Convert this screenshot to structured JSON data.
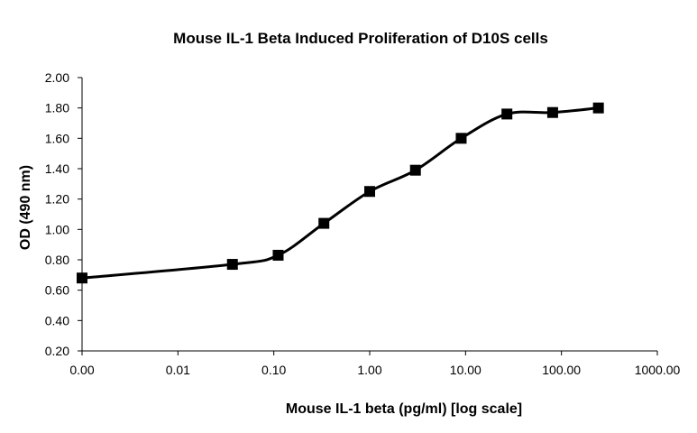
{
  "chart_data": {
    "type": "line",
    "title": "Mouse IL-1 Beta Induced Proliferation of D10S cells",
    "xlabel": "Mouse IL-1 beta (pg/ml) [log scale]",
    "ylabel": "OD (490 nm)",
    "x_scale": "log",
    "x_tick_labels": [
      "0.00",
      "0.01",
      "0.10",
      "1.00",
      "10.00",
      "100.00",
      "1000.00"
    ],
    "y_tick_labels": [
      "0.20",
      "0.40",
      "0.60",
      "0.80",
      "1.00",
      "1.20",
      "1.40",
      "1.60",
      "1.80",
      "2.00"
    ],
    "ylim": [
      0.2,
      2.0
    ],
    "grid": false,
    "marker": "square",
    "series": [
      {
        "x": [
          0.001,
          0.037,
          0.111,
          0.333,
          1.0,
          3.0,
          9.0,
          27.0,
          81.0,
          243.0
        ],
        "values": [
          0.68,
          0.77,
          0.83,
          1.04,
          1.25,
          1.39,
          1.6,
          1.76,
          1.77,
          1.8
        ]
      }
    ]
  }
}
